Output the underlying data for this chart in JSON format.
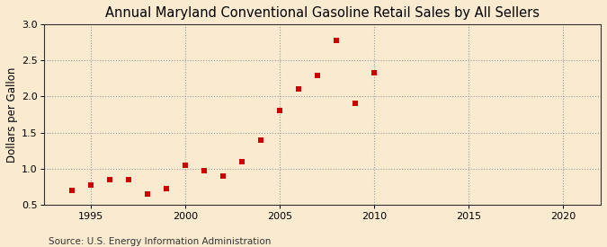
{
  "title": "Annual Maryland Conventional Gasoline Retail Sales by All Sellers",
  "ylabel": "Dollars per Gallon",
  "source": "Source: U.S. Energy Information Administration",
  "xlim": [
    1992.5,
    2022
  ],
  "ylim": [
    0.5,
    3.0
  ],
  "xticks": [
    1995,
    2000,
    2005,
    2010,
    2015,
    2020
  ],
  "yticks": [
    0.5,
    1.0,
    1.5,
    2.0,
    2.5,
    3.0
  ],
  "years": [
    1994,
    1995,
    1996,
    1997,
    1998,
    1999,
    2000,
    2001,
    2002,
    2003,
    2004,
    2005,
    2006,
    2007,
    2008,
    2009,
    2010
  ],
  "values": [
    0.7,
    0.77,
    0.85,
    0.85,
    0.65,
    0.72,
    1.05,
    0.97,
    0.9,
    1.09,
    1.39,
    1.8,
    2.11,
    2.29,
    2.78,
    1.91,
    2.33
  ],
  "marker_color": "#cc0000",
  "marker_size": 4,
  "background_color": "#faebd0",
  "grid_color": "#999999",
  "title_fontsize": 10.5,
  "label_fontsize": 8.5,
  "tick_fontsize": 8,
  "source_fontsize": 7.5
}
